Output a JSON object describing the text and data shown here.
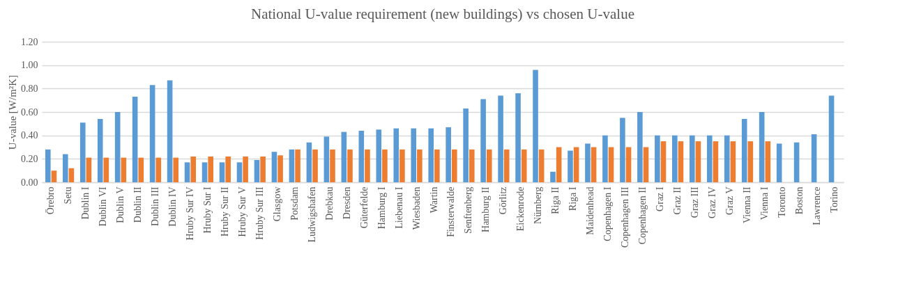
{
  "chart_data": {
    "type": "bar",
    "title": "National U-value requirement (new buildings) vs chosen U-value",
    "ylabel": "U-value [W/m²K]",
    "categories": [
      "Örebro",
      "Setu",
      "Dublin I",
      "Dublin VI",
      "Dublin V",
      "Dublin II",
      "Dublin III",
      "Dublin IV",
      "Hruby Sur IV",
      "Hruby Sur I",
      "Hruby Sur II",
      "Hruby Sur V",
      "Hruby Sur III",
      "Glasgow",
      "Potsdam",
      "Ludwigshafen",
      "Drebkau",
      "Dresden",
      "Güterfelde",
      "Hamburg I",
      "Liebenau I",
      "Wiesbaden",
      "Wartin",
      "Finsterwalde",
      "Senftenberg",
      "Hamburg II",
      "Görlitz",
      "Eickenrode",
      "Nürnberg",
      "Riga II",
      "Riga I",
      "Maidenhead",
      "Copenhagen I",
      "Copenhagen III",
      "Copenhagen II",
      "Graz I",
      "Graz II",
      "Graz III",
      "Graz IV",
      "Graz V",
      "Vienna II",
      "Vienna I",
      "Toronto",
      "Boston",
      "Lawrence",
      "Torino"
    ],
    "series": [
      {
        "color": "#5b9bd5",
        "values": [
          0.28,
          0.24,
          0.51,
          0.54,
          0.6,
          0.73,
          0.83,
          0.87,
          0.17,
          0.17,
          0.17,
          0.17,
          0.19,
          0.26,
          0.28,
          0.34,
          0.39,
          0.43,
          0.44,
          0.45,
          0.46,
          0.46,
          0.46,
          0.47,
          0.63,
          0.71,
          0.74,
          0.76,
          0.96,
          0.09,
          0.27,
          0.33,
          0.4,
          0.55,
          0.6,
          0.4,
          0.4,
          0.4,
          0.4,
          0.4,
          0.54,
          0.6,
          0.33,
          0.34,
          0.41,
          0.74
        ]
      },
      {
        "color": "#ed7d31",
        "values": [
          0.1,
          0.12,
          0.21,
          0.21,
          0.21,
          0.21,
          0.21,
          0.21,
          0.22,
          0.22,
          0.22,
          0.22,
          0.22,
          0.23,
          0.28,
          0.28,
          0.28,
          0.28,
          0.28,
          0.28,
          0.28,
          0.28,
          0.28,
          0.28,
          0.28,
          0.28,
          0.28,
          0.28,
          0.28,
          0.3,
          0.3,
          0.3,
          0.3,
          0.3,
          0.3,
          0.35,
          0.35,
          0.35,
          0.35,
          0.35,
          0.35,
          0.35,
          null,
          null,
          null,
          null
        ]
      }
    ],
    "ylim": [
      0,
      1.2
    ],
    "yticks": [
      {
        "value": 0,
        "label": "0.00"
      },
      {
        "value": 0.2,
        "label": "0.20"
      },
      {
        "value": 0.4,
        "label": "0.40"
      },
      {
        "value": 0.6,
        "label": "0.60"
      },
      {
        "value": 0.8,
        "label": "0.80"
      },
      {
        "value": 1.0,
        "label": "1.00"
      },
      {
        "value": 1.2,
        "label": "1.20"
      }
    ],
    "grid": "y",
    "legend": false
  }
}
